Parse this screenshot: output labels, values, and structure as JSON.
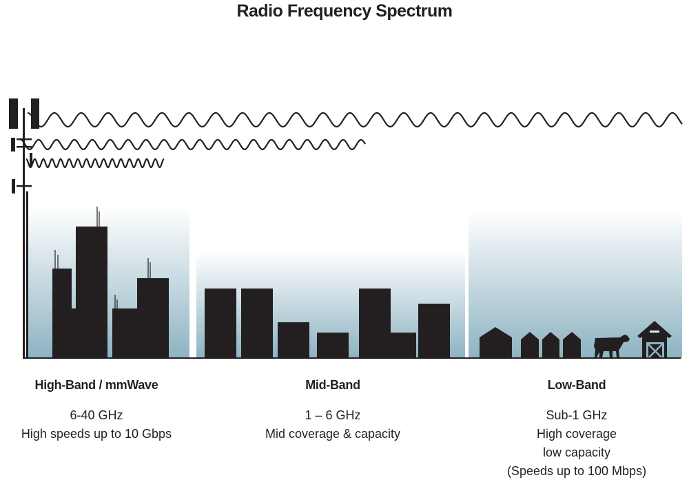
{
  "title": "Radio Frequency Spectrum",
  "colors": {
    "ink": "#231f20",
    "sky_top": "#ffffff",
    "sky_bottom": "#8db3c2"
  },
  "bands": [
    {
      "name": "High-Band / mmWave",
      "lines": [
        "6-40 GHz",
        "High speeds up to 10 Gbps"
      ],
      "scene": "city-skyscrapers-icon"
    },
    {
      "name": "Mid-Band",
      "lines": [
        "1 – 6 GHz",
        "Mid coverage & capacity"
      ],
      "scene": "suburb-buildings-icon"
    },
    {
      "name": "Low-Band",
      "lines": [
        "Sub-1 GHz",
        "High coverage",
        "low capacity",
        "(Speeds up to 100 Mbps)"
      ],
      "scene": "farm-houses-cow-barn-icon"
    }
  ]
}
